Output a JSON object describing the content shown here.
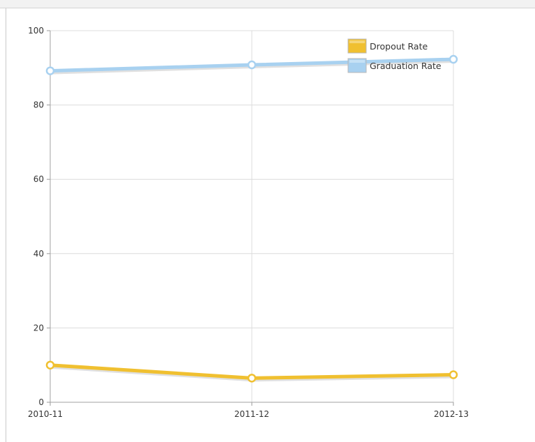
{
  "chart_data": {
    "type": "line",
    "title": "",
    "xlabel": "",
    "ylabel": "",
    "categories": [
      "2010-11",
      "2011-12",
      "2012-13"
    ],
    "ylim": [
      0,
      100
    ],
    "yticks": [
      "0",
      "20",
      "40",
      "60",
      "80",
      "100"
    ],
    "grid": true,
    "legend_position": "top-right",
    "series": [
      {
        "name": "Dropout Rate",
        "values": [
          10.0,
          6.5,
          7.4
        ],
        "color": "#f0c030"
      },
      {
        "name": "Graduation Rate",
        "values": [
          89.2,
          90.8,
          92.3
        ],
        "color": "#a8d1f0"
      }
    ]
  }
}
